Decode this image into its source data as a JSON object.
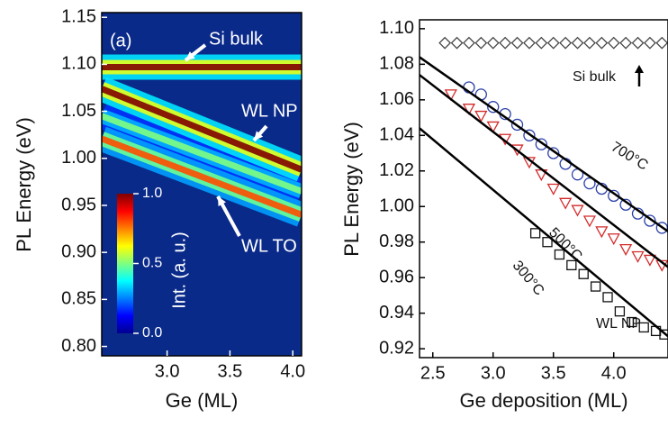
{
  "chart_data": [
    {
      "type": "heatmap",
      "panel_label": "(a)",
      "xlabel": "Ge (ML)",
      "ylabel": "PL Energy (eV)",
      "xlim": [
        2.48,
        4.07
      ],
      "ylim": [
        0.79,
        1.155
      ],
      "xticks": [
        {
          "value": 3,
          "label": "3.0"
        },
        3.5,
        {
          "value": 4,
          "label": "4.0"
        }
      ],
      "yticks": [
        {
          "value": 0.8,
          "label": "0.80"
        },
        0.85,
        {
          "value": 0.9,
          "label": "0.90"
        },
        0.95,
        {
          "value": 1,
          "label": "1.00"
        },
        1.05,
        {
          "value": 1.1,
          "label": "1.10"
        },
        1.15
      ],
      "background": "#0a2a8a",
      "ridges": [
        {
          "x": [
            2.48,
            4.07
          ],
          "values": [
            1.097,
            1.097
          ],
          "intensity": 1.0
        },
        {
          "x": [
            2.48,
            4.07
          ],
          "values": [
            1.045,
            0.965
          ],
          "intensity": 0.5
        },
        {
          "x": [
            2.48,
            4.07
          ],
          "values": [
            1.021,
            0.94
          ],
          "intensity": 0.8
        },
        {
          "x": [
            2.48,
            4.07
          ],
          "values": [
            1.074,
            0.988
          ],
          "intensity": 1.0
        }
      ],
      "colorbar": {
        "label": "Int. (a. u.)",
        "lim": [
          0,
          1
        ],
        "ticks": [
          {
            "value": 0,
            "label": "0.0"
          },
          {
            "value": 0.5,
            "label": "0.5"
          },
          {
            "value": 1,
            "label": "1.0"
          }
        ]
      },
      "annotations": [
        "Si bulk",
        "WL NP",
        "WL TO"
      ]
    },
    {
      "type": "scatter",
      "xlabel": "Ge deposition (ML)",
      "ylabel": "PL Energy (eV)",
      "xlim": [
        2.39,
        4.45
      ],
      "ylim": [
        0.915,
        1.105
      ],
      "xticks": [
        2.5,
        {
          "value": 3,
          "label": "3.0"
        },
        3.5,
        {
          "value": 4,
          "label": "4.0"
        }
      ],
      "yticks": [
        0.92,
        0.94,
        0.96,
        0.98,
        {
          "value": 1,
          "label": "1.00"
        },
        1.02,
        1.04,
        1.06,
        1.08,
        {
          "value": 1.1,
          "label": "1.10"
        }
      ],
      "series": [
        {
          "name": "Si bulk",
          "marker": "diamond",
          "color": "#444444",
          "x": [
            2.6,
            2.7,
            2.8,
            2.9,
            3.0,
            3.1,
            3.2,
            3.3,
            3.4,
            3.5,
            3.6,
            3.7,
            3.8,
            3.9,
            4.0,
            4.1,
            4.2,
            4.3,
            4.4
          ],
          "values": [
            1.092,
            1.092,
            1.092,
            1.092,
            1.092,
            1.092,
            1.092,
            1.092,
            1.092,
            1.092,
            1.092,
            1.092,
            1.092,
            1.092,
            1.092,
            1.092,
            1.092,
            1.092,
            1.092
          ]
        },
        {
          "name": "700°C",
          "marker": "circle",
          "color": "#2a3fa8",
          "x": [
            2.8,
            2.9,
            3.0,
            3.1,
            3.2,
            3.3,
            3.4,
            3.5,
            3.6,
            3.7,
            3.8,
            3.9,
            4.0,
            4.1,
            4.2,
            4.3,
            4.4
          ],
          "values": [
            1.067,
            1.063,
            1.056,
            1.052,
            1.046,
            1.04,
            1.035,
            1.03,
            1.024,
            1.018,
            1.013,
            1.01,
            1.006,
            1.001,
            0.996,
            0.992,
            0.988
          ]
        },
        {
          "name": "500°C",
          "marker": "triangle",
          "color": "#d42a2a",
          "x": [
            2.65,
            2.8,
            2.9,
            3.0,
            3.1,
            3.2,
            3.3,
            3.4,
            3.5,
            3.6,
            3.7,
            3.8,
            3.9,
            4.0,
            4.1,
            4.2,
            4.3,
            4.4
          ],
          "values": [
            1.063,
            1.055,
            1.051,
            1.045,
            1.038,
            1.032,
            1.025,
            1.018,
            1.01,
            1.002,
            0.998,
            0.992,
            0.986,
            0.982,
            0.976,
            0.972,
            0.97,
            0.967
          ]
        },
        {
          "name": "300°C",
          "marker": "square",
          "color": "#111111",
          "x": [
            3.35,
            3.45,
            3.55,
            3.65,
            3.75,
            3.85,
            3.95,
            4.05,
            4.15,
            4.25,
            4.35,
            4.42
          ],
          "values": [
            0.985,
            0.98,
            0.973,
            0.967,
            0.962,
            0.955,
            0.949,
            0.941,
            0.935,
            0.932,
            0.93,
            0.928
          ]
        }
      ],
      "fits": [
        {
          "x": [
            2.39,
            4.45
          ],
          "values": [
            1.084,
            0.986
          ],
          "color": "#000000"
        },
        {
          "x": [
            2.39,
            4.45
          ],
          "values": [
            1.074,
            0.966
          ],
          "color": "#000000"
        },
        {
          "x": [
            2.39,
            4.45
          ],
          "values": [
            1.044,
            0.927
          ],
          "color": "#000000"
        }
      ],
      "annotations": [
        "WL NP"
      ]
    }
  ]
}
